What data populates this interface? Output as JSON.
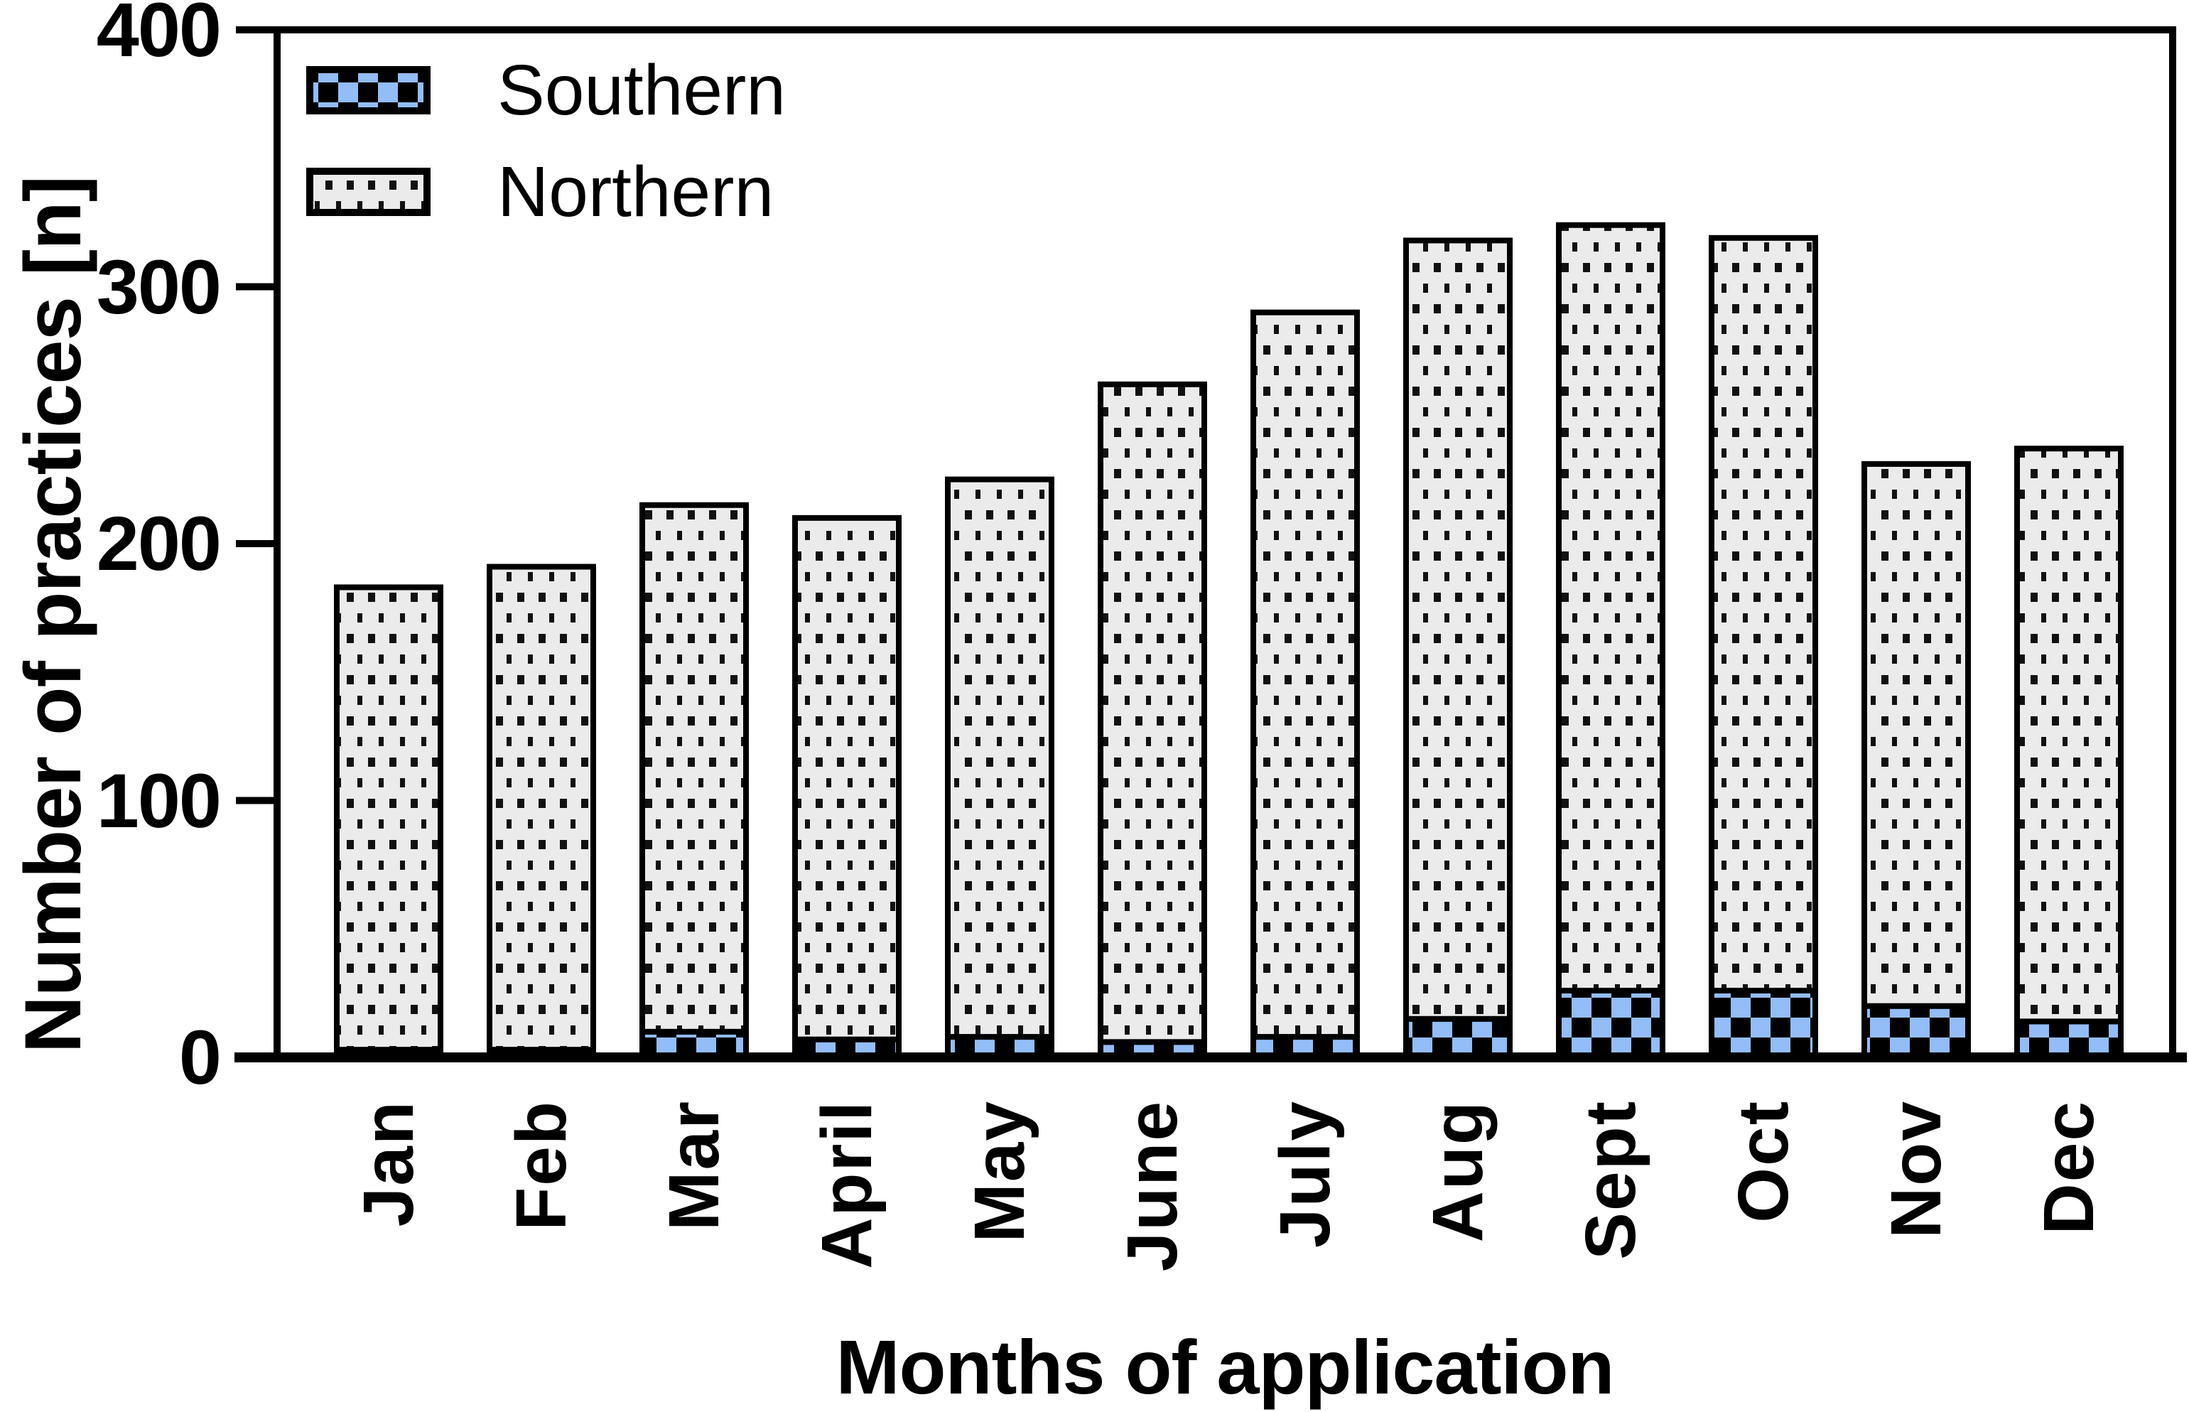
{
  "chart_data": {
    "type": "bar",
    "stacked": true,
    "title": "",
    "xlabel": "Months of application",
    "ylabel": "Number of practices [n]",
    "ylim": [
      0,
      400
    ],
    "yticks": [
      0,
      100,
      200,
      300,
      400
    ],
    "categories": [
      "Jan",
      "Feb",
      "Mar",
      "April",
      "May",
      "June",
      "July",
      "Aug",
      "Sept",
      "Oct",
      "Nov",
      "Dec"
    ],
    "series": [
      {
        "name": "Southern",
        "pattern": "blue-black-checkerboard",
        "color": "#92bdf6",
        "values": [
          3,
          3,
          10,
          7,
          8,
          6,
          8,
          15,
          26,
          26,
          20,
          14
        ]
      },
      {
        "name": "Northern",
        "pattern": "light-gray-with-black-square-dots",
        "color": "#ebebeb",
        "values": [
          180,
          188,
          205,
          203,
          217,
          256,
          282,
          303,
          298,
          293,
          211,
          223
        ]
      }
    ],
    "stack_totals": [
      183,
      191,
      215,
      210,
      225,
      262,
      290,
      318,
      324,
      319,
      231,
      237
    ],
    "legend_position": "top-left-inside",
    "grid": false,
    "axis_color": "#000000",
    "dot_color": "#111111",
    "outline_color": "#000000"
  }
}
